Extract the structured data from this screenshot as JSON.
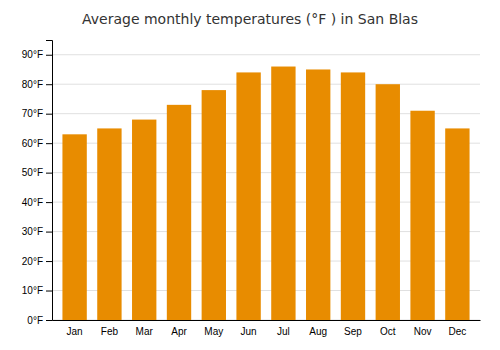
{
  "chart_data": {
    "type": "bar",
    "title": "Average monthly temperatures (°F ) in San Blas",
    "categories": [
      "Jan",
      "Feb",
      "Mar",
      "Apr",
      "May",
      "Jun",
      "Jul",
      "Aug",
      "Sep",
      "Oct",
      "Nov",
      "Dec"
    ],
    "values": [
      63,
      65,
      68,
      73,
      78,
      84,
      86,
      85,
      84,
      80,
      71,
      65
    ],
    "color": "#E88C00",
    "ylim": [
      0,
      95
    ],
    "yticks": [
      {
        "value": 0,
        "label": "0°F"
      },
      {
        "value": 10,
        "label": "10°F"
      },
      {
        "value": 20,
        "label": "20°F"
      },
      {
        "value": 30,
        "label": "30°F"
      },
      {
        "value": 40,
        "label": "40°F"
      },
      {
        "value": 50,
        "label": "50°F"
      },
      {
        "value": 60,
        "label": "60°F"
      },
      {
        "value": 70,
        "label": "70°F"
      },
      {
        "value": 80,
        "label": "80°F"
      },
      {
        "value": 90,
        "label": "90°F"
      }
    ],
    "grid": true
  }
}
